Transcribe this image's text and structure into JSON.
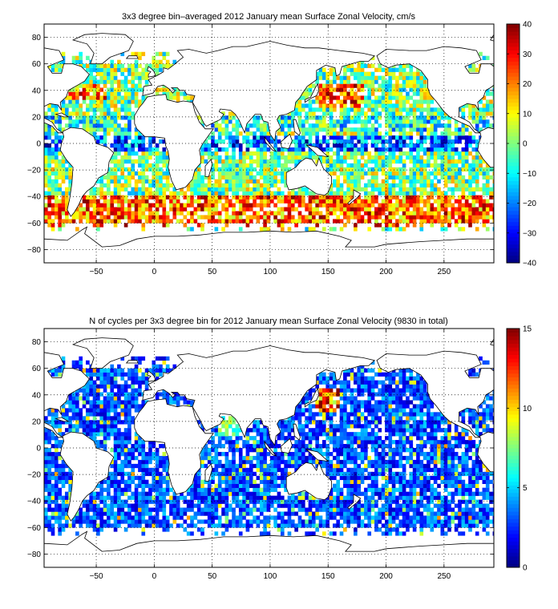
{
  "colors": {
    "land": "#ffffff",
    "coast": "#000000",
    "grid": "#000000",
    "colormap": "jet"
  },
  "chart_data": [
    {
      "type": "heatmap",
      "title": "3x3 degree bin–averaged 2012 January mean Surface Zonal Velocity, cm/s",
      "bin_size_deg": 3,
      "xlim": [
        -95,
        293
      ],
      "ylim": [
        -90,
        90
      ],
      "x_ticks": [
        -50,
        0,
        50,
        100,
        150,
        200,
        250
      ],
      "y_ticks": [
        -80,
        -60,
        -40,
        -20,
        0,
        20,
        40,
        60,
        80
      ],
      "x_tick_labels": [
        "−50",
        "0",
        "50",
        "100",
        "150",
        "200",
        "250"
      ],
      "y_tick_labels": [
        "−80",
        "−60",
        "−40",
        "−20",
        "0",
        "20",
        "40",
        "60",
        "80"
      ],
      "grid": true,
      "colorbar": {
        "min": -40,
        "max": 40,
        "ticks": [
          -40,
          -30,
          -20,
          -10,
          0,
          10,
          20,
          30,
          40
        ],
        "tick_labels": [
          "−40",
          "−30",
          "−20",
          "−10",
          "0",
          "10",
          "20",
          "30",
          "40"
        ]
      },
      "value_range": [
        -40,
        40
      ],
      "notes_on_values": "Strong eastward flow (30-40 cm/s) in the Southern Ocean (-40 to -60 lat), Kuroshio and Gulf Stream regions; westward flow (-20 to -40 cm/s) in the equatorial Pacific and Atlantic."
    },
    {
      "type": "heatmap",
      "title": "N of cycles per 3x3 degree bin for 2012 January mean Surface Zonal Velocity (9830 in total)",
      "bin_size_deg": 3,
      "xlim": [
        -95,
        293
      ],
      "ylim": [
        -90,
        90
      ],
      "x_ticks": [
        -50,
        0,
        50,
        100,
        150,
        200,
        250
      ],
      "y_ticks": [
        -80,
        -60,
        -40,
        -20,
        0,
        20,
        40,
        60,
        80
      ],
      "x_tick_labels": [
        "−50",
        "0",
        "50",
        "100",
        "150",
        "200",
        "250"
      ],
      "y_tick_labels": [
        "−80",
        "−60",
        "−40",
        "−20",
        "0",
        "20",
        "40",
        "60",
        "80"
      ],
      "grid": true,
      "colorbar": {
        "min": 0,
        "max": 15,
        "ticks": [
          0,
          5,
          10,
          15
        ],
        "tick_labels": [
          "0",
          "5",
          "10",
          "15"
        ]
      },
      "value_range": [
        0,
        15
      ],
      "total_cycles": 9830,
      "notes_on_values": "Most bins contain 1-4 cycles; highest counts (10-15) near Japan/Kuroshio (30-40N, 140-160E) and the Arabian Sea."
    }
  ]
}
